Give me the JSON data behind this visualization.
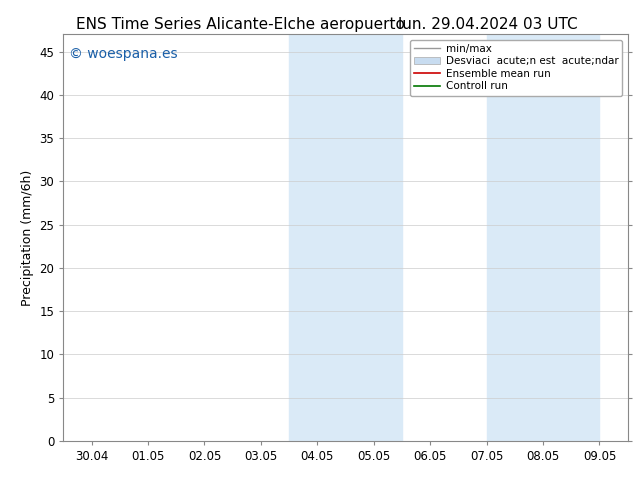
{
  "title_left": "ENS Time Series Alicante-Elche aeropuerto",
  "title_right": "lun. 29.04.2024 03 UTC",
  "ylabel": "Precipitation (mm/6h)",
  "watermark": "© woespana.es",
  "watermark_color": "#1a5fa8",
  "background_color": "#ffffff",
  "plot_bg_color": "#ffffff",
  "ylim": [
    0,
    47
  ],
  "yticks": [
    0,
    5,
    10,
    15,
    20,
    25,
    30,
    35,
    40,
    45
  ],
  "x_labels": [
    "30.04",
    "01.05",
    "02.05",
    "03.05",
    "04.05",
    "05.05",
    "06.05",
    "07.05",
    "08.05",
    "09.05"
  ],
  "x_positions": [
    0,
    1,
    2,
    3,
    4,
    5,
    6,
    7,
    8,
    9
  ],
  "xlim": [
    -0.5,
    9.5
  ],
  "shaded_regions": [
    {
      "xmin": 3.5,
      "xmax": 5.5,
      "color": "#daeaf7"
    },
    {
      "xmin": 7.0,
      "xmax": 9.0,
      "color": "#daeaf7"
    }
  ],
  "legend_entries": [
    {
      "label": "min/max",
      "color": "#999999",
      "lw": 1.0,
      "type": "line"
    },
    {
      "label": "Desviaci  acute;n est  acute;ndar",
      "color": "#c8dcf0",
      "type": "band"
    },
    {
      "label": "Ensemble mean run",
      "color": "#cc0000",
      "lw": 1.2,
      "type": "line"
    },
    {
      "label": "Controll run",
      "color": "#007700",
      "lw": 1.2,
      "type": "line"
    }
  ],
  "title_fontsize": 11,
  "tick_fontsize": 8.5,
  "ylabel_fontsize": 9,
  "watermark_fontsize": 10,
  "legend_fontsize": 7.5
}
